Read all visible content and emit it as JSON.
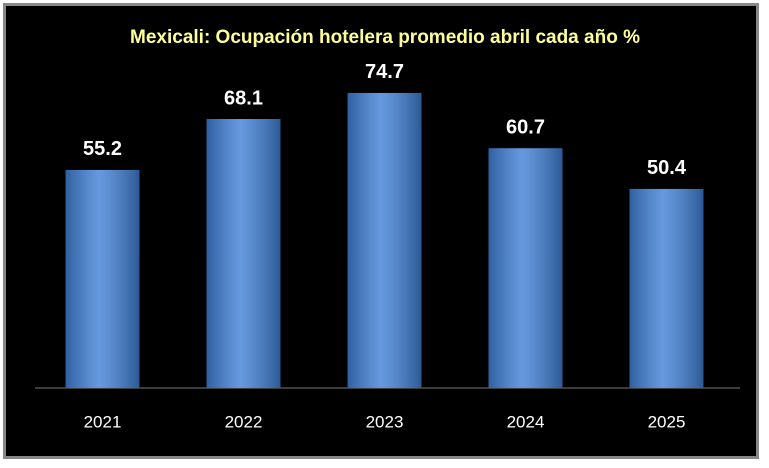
{
  "chart_data": {
    "type": "bar",
    "title": "Mexicali: Ocupación hotelera promedio abril cada año %",
    "categories": [
      "2021",
      "2022",
      "2023",
      "2024",
      "2025"
    ],
    "values": [
      55.2,
      68.1,
      74.7,
      60.7,
      50.4
    ],
    "value_labels": [
      "55.2",
      "68.1",
      "74.7",
      "60.7",
      "50.4"
    ],
    "color": "#3f7fd6"
  }
}
